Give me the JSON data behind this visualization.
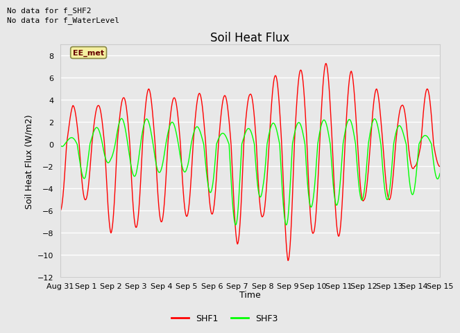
{
  "title": "Soil Heat Flux",
  "xlabel": "Time",
  "ylabel": "Soil Heat Flux (W/m2)",
  "ylim": [
    -12,
    9
  ],
  "yticks": [
    -12,
    -10,
    -8,
    -6,
    -4,
    -2,
    0,
    2,
    4,
    6,
    8
  ],
  "fig_bg_color": "#e8e8e8",
  "plot_bg_color": "#e8e8e8",
  "grid_color": "#ffffff",
  "text_top_left": [
    "No data for f_SHF2",
    "No data for f_WaterLevel"
  ],
  "annotation_box": "EE_met",
  "shf1_color": "#ff0000",
  "shf3_color": "#00ff00",
  "x_tick_labels": [
    "Aug 31",
    "Sep 1",
    "Sep 2",
    "Sep 3",
    "Sep 4",
    "Sep 5",
    "Sep 6",
    "Sep 7",
    "Sep 8",
    "Sep 9",
    "Sep 10",
    "Sep 11",
    "Sep 12",
    "Sep 13",
    "Sep 14",
    "Sep 15"
  ],
  "title_fontsize": 12,
  "axis_fontsize": 9,
  "tick_fontsize": 8,
  "nodata_fontsize": 8,
  "legend_fontsize": 9
}
